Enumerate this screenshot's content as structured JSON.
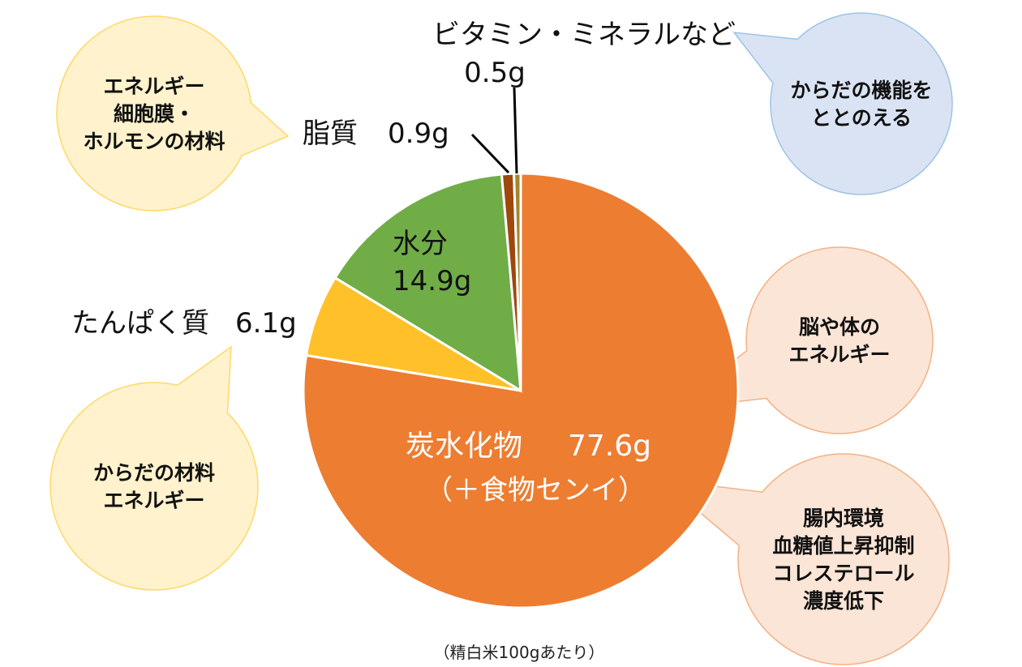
{
  "chart_data": {
    "type": "pie",
    "start": "top",
    "direction": "clockwise",
    "slices": [
      {
        "key": "carb",
        "label": "炭水化物",
        "value": 77.6,
        "value_label": "77.6g",
        "sub_label": "（＋食物センイ）",
        "color": "#ED7D31"
      },
      {
        "key": "protein",
        "label": "たんぱく質",
        "value": 6.1,
        "value_label": "6.1g",
        "color": "#FFC02A"
      },
      {
        "key": "water",
        "label": "水分",
        "value": 14.9,
        "value_label": "14.9g",
        "color": "#70AD47"
      },
      {
        "key": "lipid",
        "label": "脂質",
        "value": 0.9,
        "value_label": "0.9g",
        "color": "#9E480E"
      },
      {
        "key": "vitamin",
        "label": "ビタミン・ミネラルなど",
        "value": 0.5,
        "value_label": "0.5g",
        "color": "#A5862B"
      }
    ],
    "footnote": "（精白米100gあたり）"
  },
  "bubbles": {
    "lipid": [
      "エネルギー",
      "細胞膜・",
      "ホルモンの材料"
    ],
    "vitamin": [
      "からだの機能を",
      "ととのえる"
    ],
    "carb_energy": [
      "脳や体の",
      "エネルギー"
    ],
    "fiber": [
      "腸内環境",
      "血糖値上昇抑制",
      "コレステロール",
      "濃度低下"
    ],
    "protein": [
      "からだの材料",
      "エネルギー"
    ]
  },
  "colors": {
    "yellow_bubble": "#FFF2CC",
    "yellow_border": "#FFD966",
    "blue_bubble": "#DAE3F3",
    "blue_border": "#9DC3E6",
    "pink_bubble": "#FBE5D6",
    "pink_border": "#F4B183"
  }
}
